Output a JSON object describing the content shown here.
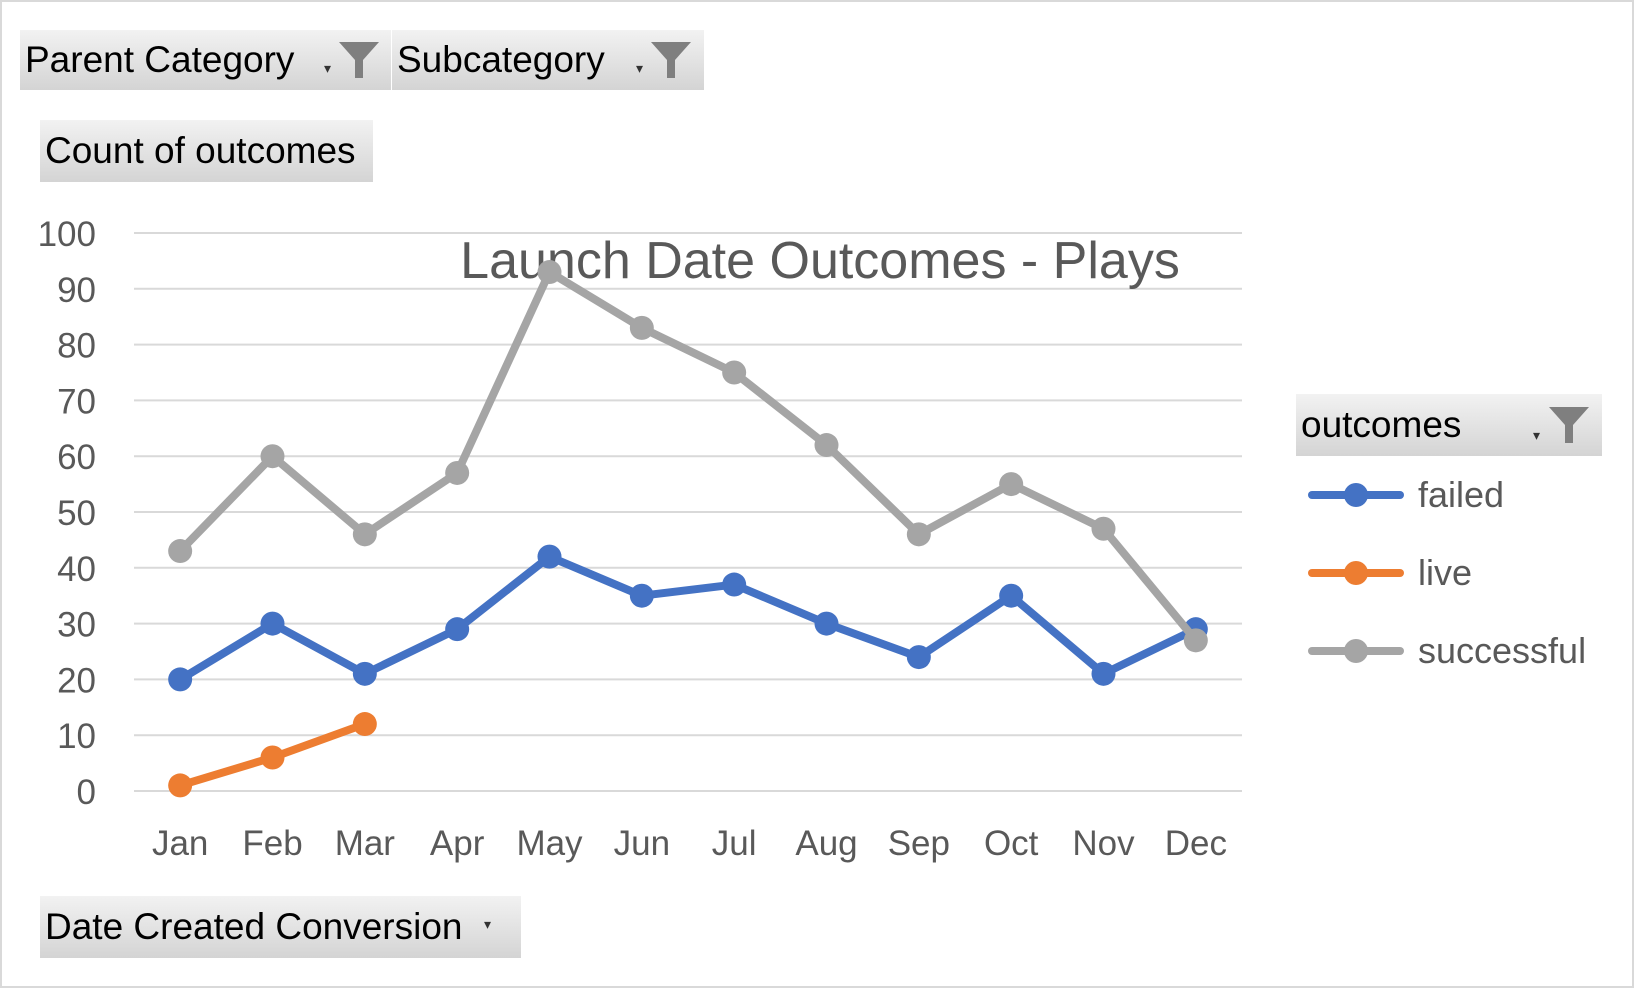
{
  "filters": {
    "parent_category": "Parent Category",
    "subcategory": "Subcategory",
    "values_field": "Count of outcomes",
    "legend_field": "outcomes",
    "axis_field": "Date Created Conversion"
  },
  "icons": {
    "filter": "funnel-icon",
    "dropdown": "dropdown-arrow-icon"
  },
  "chart_data": {
    "type": "line",
    "title": "Launch Date Outcomes - Plays",
    "xlabel": "",
    "ylabel": "",
    "categories": [
      "Jan",
      "Feb",
      "Mar",
      "Apr",
      "May",
      "Jun",
      "Jul",
      "Aug",
      "Sep",
      "Oct",
      "Nov",
      "Dec"
    ],
    "ylim": [
      0,
      100
    ],
    "yticks": [
      0,
      10,
      20,
      30,
      40,
      50,
      60,
      70,
      80,
      90,
      100
    ],
    "grid": true,
    "legend_position": "right",
    "series": [
      {
        "name": "failed",
        "color": "#4472c4",
        "values": [
          20,
          30,
          21,
          29,
          42,
          35,
          37,
          30,
          24,
          35,
          21,
          29
        ]
      },
      {
        "name": "live",
        "color": "#ed7d31",
        "values": [
          1,
          6,
          12,
          null,
          null,
          null,
          null,
          null,
          null,
          null,
          null,
          null
        ]
      },
      {
        "name": "successful",
        "color": "#a5a5a5",
        "values": [
          43,
          60,
          46,
          57,
          93,
          83,
          75,
          62,
          46,
          55,
          47,
          27
        ]
      }
    ]
  }
}
